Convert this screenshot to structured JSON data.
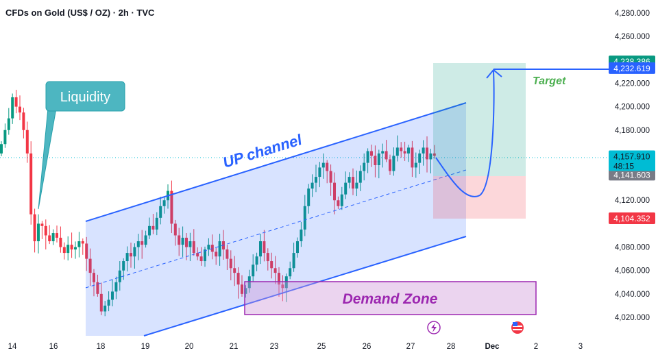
{
  "chart_data": {
    "type": "candlestick",
    "title": "CFDs on Gold (US$ / OZ) · 2h · TVC",
    "ylim": [
      4005,
      4290
    ],
    "y_ticks": [
      "4,280.000",
      "4,260.000",
      "4,220.000",
      "4,200.000",
      "4,180.000",
      "4,120.000",
      "4,080.000",
      "4,060.000",
      "4,040.000",
      "4,020.000"
    ],
    "y_tick_values": [
      4280,
      4260,
      4220,
      4200,
      4180,
      4120,
      4080,
      4060,
      4040,
      4020
    ],
    "x_ticks": [
      "14",
      "16",
      "18",
      "19",
      "20",
      "21",
      "23",
      "25",
      "26",
      "27",
      "28",
      "Dec",
      "2",
      "3"
    ],
    "first_open": 4160,
    "closes": [
      4168,
      4180,
      4190,
      4208,
      4200,
      4195,
      4180,
      4160,
      4108,
      4085,
      4100,
      4098,
      4090,
      4085,
      4092,
      4088,
      4080,
      4075,
      4082,
      4078,
      4080,
      4085,
      4083,
      4070,
      4058,
      4050,
      4040,
      4025,
      4030,
      4035,
      4042,
      4050,
      4060,
      4068,
      4075,
      4072,
      4080,
      4085,
      4082,
      4090,
      4098,
      4095,
      4105,
      4115,
      4120,
      4128,
      4100,
      4090,
      4082,
      4088,
      4080,
      4085,
      4075,
      4072,
      4068,
      4078,
      4082,
      4076,
      4072,
      4085,
      4078,
      4070,
      4062,
      4058,
      4048,
      4040,
      4045,
      4055,
      4065,
      4072,
      4085,
      4075,
      4068,
      4062,
      4058,
      4048,
      4045,
      4055,
      4062,
      4075,
      4085,
      4095,
      4115,
      4130,
      4135,
      4140,
      4148,
      4152,
      4145,
      4135,
      4120,
      4115,
      4125,
      4135,
      4140,
      4130,
      4135,
      4145,
      4152,
      4162,
      4158,
      4150,
      4160,
      4162,
      4155,
      4145,
      4158,
      4165,
      4162,
      4160,
      4165,
      4148,
      4152,
      4160,
      4165,
      4155,
      4160,
      4158
    ],
    "current_price": 4157.91,
    "countdown": "48:15",
    "price_tags": [
      {
        "label": "4,238.386",
        "value": 4238.386,
        "color": "#089981"
      },
      {
        "label": "4,232.619",
        "value": 4232.619,
        "color": "#2962ff"
      },
      {
        "label": "4,141.603",
        "value": 4141.603,
        "color": "#787b86"
      },
      {
        "label": "4,104.352",
        "value": 4104.352,
        "color": "#f23645"
      }
    ],
    "current_tag": {
      "label": "4,157.910",
      "color": "#00bcd4"
    },
    "colors": {
      "up": "#089981",
      "down": "#f23645",
      "channel": "#2962ff",
      "demand": "#9c27b0"
    },
    "annotations": {
      "liquidity": "Liquidity",
      "channel": "UP channel",
      "target": "Target",
      "demand": "Demand Zone"
    },
    "icons": [
      "lightning-event-icon",
      "us-flag-icon"
    ]
  }
}
